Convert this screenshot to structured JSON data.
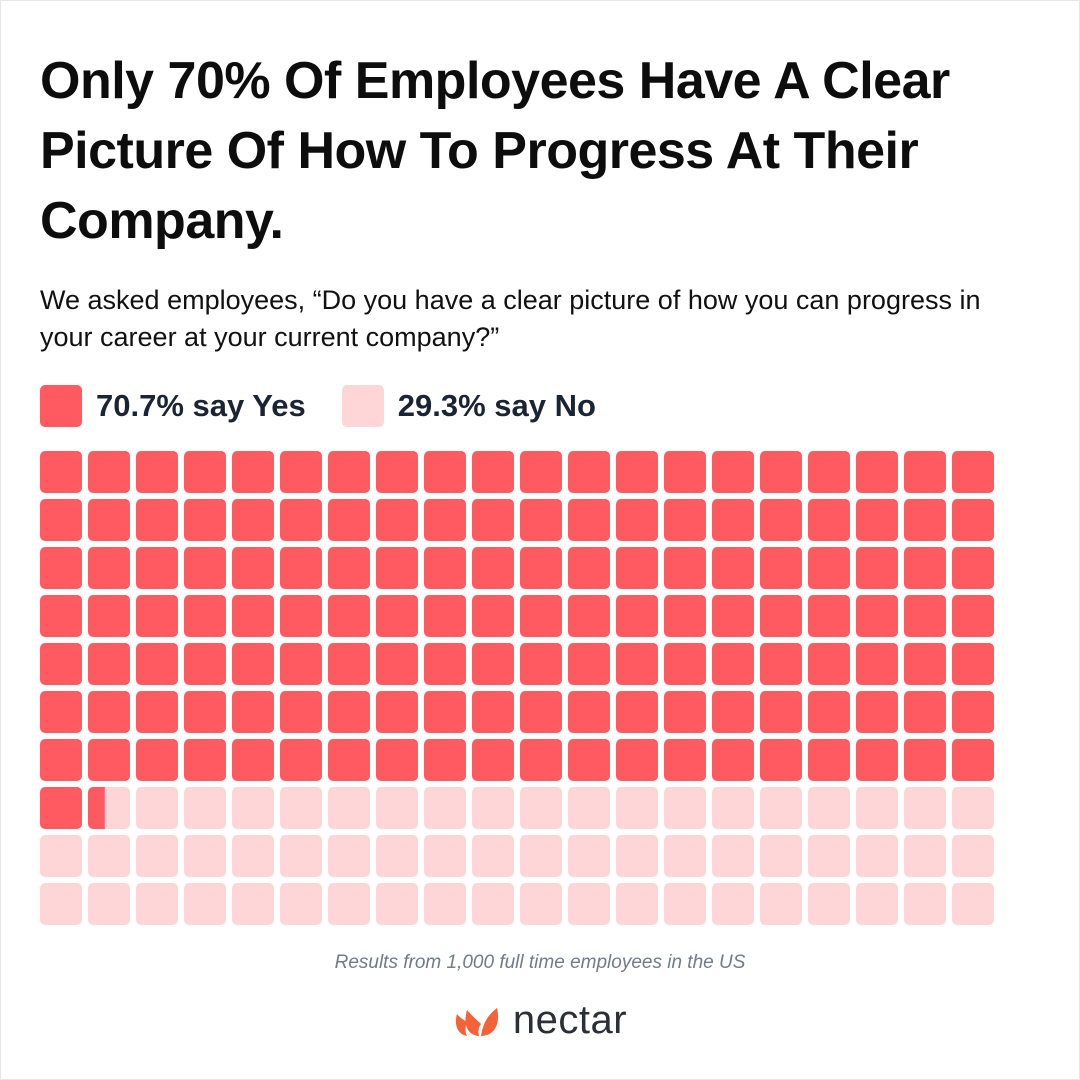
{
  "title": "Only 70% Of Employees Have A Clear Picture Of How To Progress At Their Company.",
  "subtitle": "We asked employees, “Do you have a clear picture of how you can progress in your career at your current company?”",
  "footnote": "Results from 1,000 full time employees in the US",
  "brand": {
    "name": "nectar",
    "logo_icon": "petal-logo-icon",
    "logo_color": "#f4623a"
  },
  "colors": {
    "yes": "#ff5a62",
    "no": "#ffd6d8"
  },
  "chart_data": {
    "type": "waffle",
    "total_cells": 200,
    "columns": 20,
    "rows": 10,
    "series": [
      {
        "name": "70.7% say Yes",
        "value": 70.7,
        "color": "#ff5a62"
      },
      {
        "name": "29.3% say No",
        "value": 29.3,
        "color": "#ffd6d8"
      }
    ],
    "legend_position": "top-left"
  }
}
